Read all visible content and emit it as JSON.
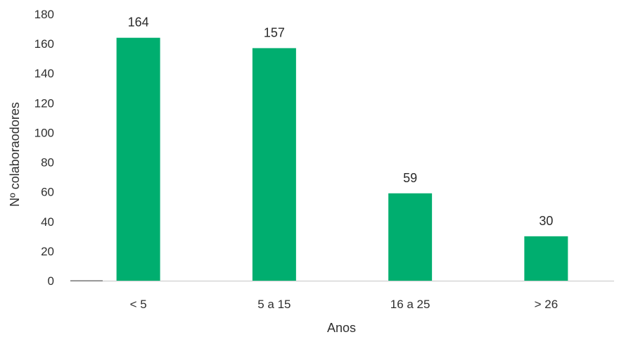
{
  "chart_data": {
    "type": "bar",
    "categories": [
      "< 5",
      "5 a 15",
      "16 a 25",
      "> 26"
    ],
    "values": [
      164,
      157,
      59,
      30
    ],
    "title": "",
    "xlabel": "Anos",
    "ylabel": "Nº colaboraodores",
    "ylim": [
      0,
      180
    ],
    "yticks": [
      0,
      20,
      40,
      60,
      80,
      100,
      120,
      140,
      160,
      180
    ],
    "grid": false,
    "data_labels": true,
    "colors": {
      "bar": "#00ae6f",
      "axis": "#d6d6d6",
      "text": "#2f2f2f"
    }
  }
}
